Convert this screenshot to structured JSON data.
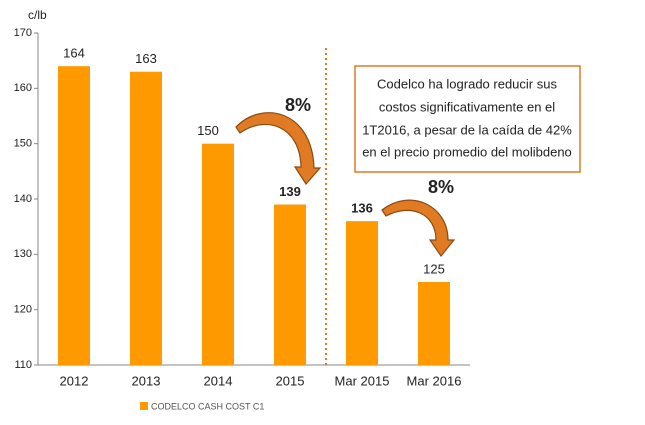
{
  "chart_data": {
    "type": "bar",
    "y_label": "c/lb",
    "categories": [
      "2012",
      "2013",
      "2014",
      "2015",
      "Mar 2015",
      "Mar 2016"
    ],
    "values": [
      164,
      163,
      150,
      139,
      136,
      125
    ],
    "color": "#ff9900",
    "ylim": [
      110,
      170
    ],
    "yticks": [
      110,
      120,
      130,
      140,
      150,
      160,
      170
    ],
    "legend": "CODELCO CASH COST C1",
    "annotations": [
      "8%",
      "8%"
    ],
    "note": [
      "Codelco ha logrado reducir sus",
      "costos significativamente en el",
      "1T2016,  a pesar de la caída de 42%",
      "en el precio promedio del molibdeno"
    ]
  }
}
